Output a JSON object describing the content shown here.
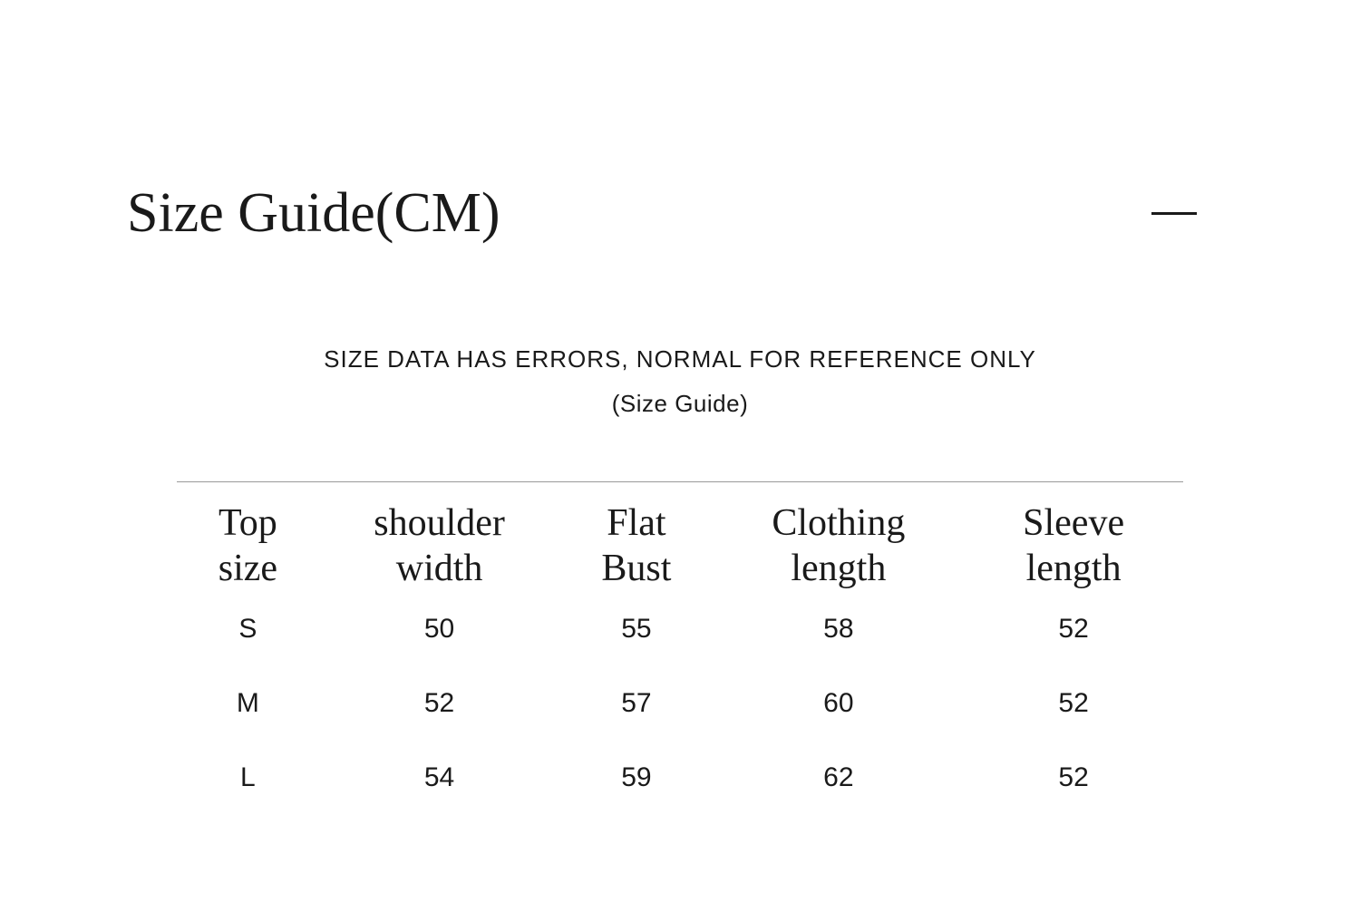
{
  "header": {
    "title": "Size Guide(CM)"
  },
  "disclaimer": "SIZE DATA HAS ERRORS, NORMAL FOR REFERENCE ONLY",
  "subtitle": "(Size Guide)",
  "table": {
    "columns": [
      "Top size",
      "shoulder width",
      "Flat Bust",
      "Clothing length",
      "Sleeve length"
    ],
    "rows": [
      [
        "S",
        "50",
        "55",
        "58",
        "52"
      ],
      [
        "M",
        "52",
        "57",
        "60",
        "52"
      ],
      [
        "L",
        "54",
        "59",
        "62",
        "52"
      ]
    ],
    "column_widths": [
      "20%",
      "20%",
      "20%",
      "20%",
      "20%"
    ],
    "header_fontsize": 42,
    "cell_fontsize": 30,
    "border_color": "#999999",
    "background_color": "#ffffff",
    "text_color": "#1a1a1a"
  }
}
